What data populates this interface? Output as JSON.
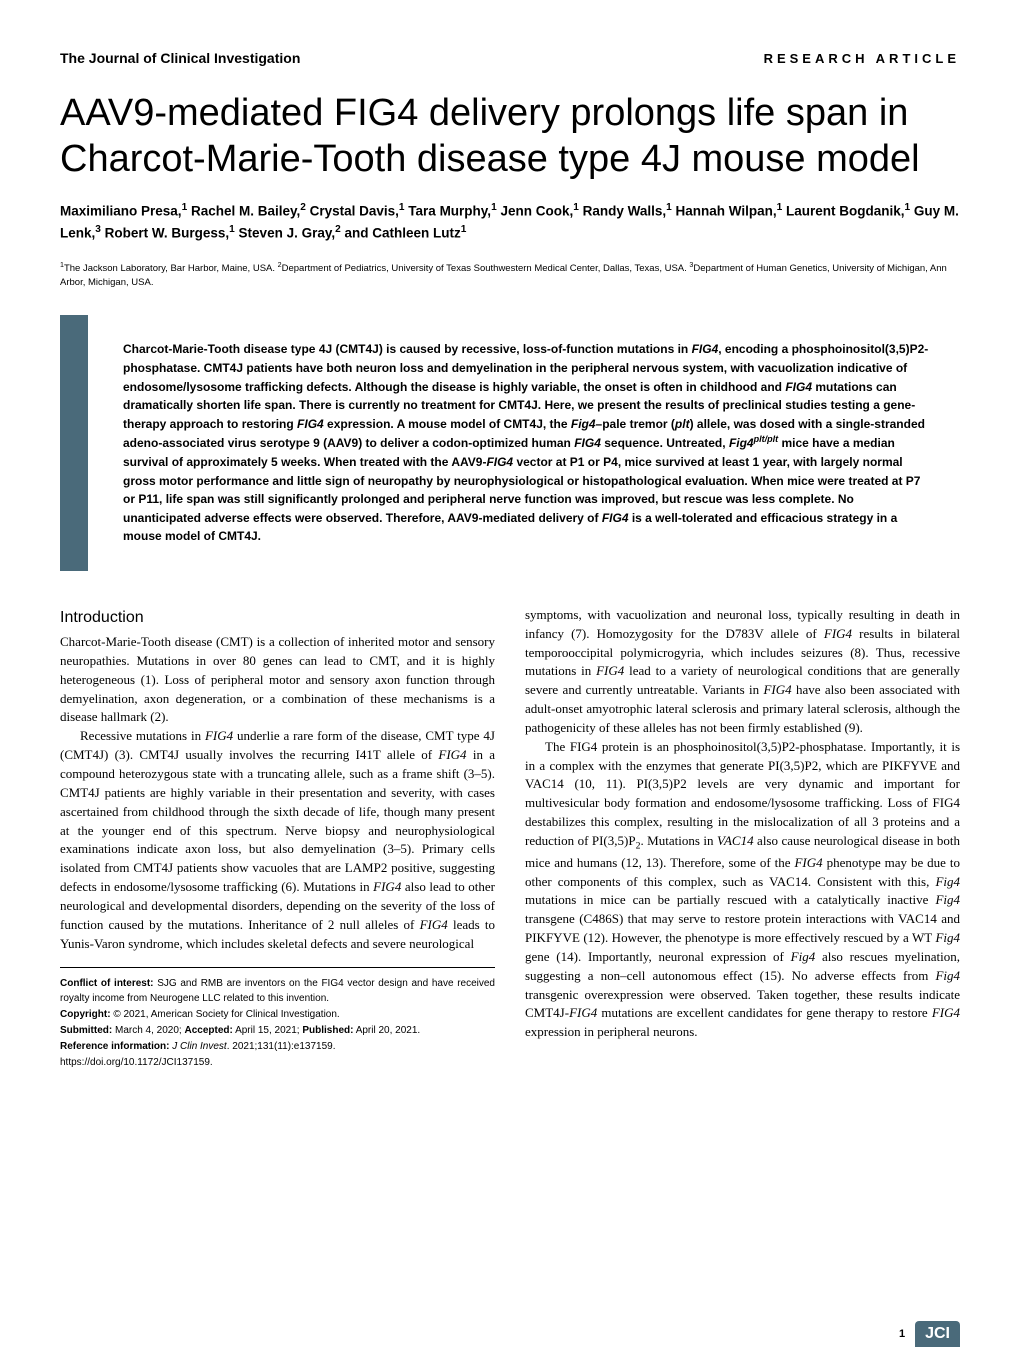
{
  "header": {
    "journal": "The Journal of Clinical Investigation",
    "article_type": "RESEARCH ARTICLE"
  },
  "title": "AAV9-mediated FIG4 delivery prolongs life span in Charcot-Marie-Tooth disease type 4J mouse model",
  "authors_html": "Maximiliano Presa,<span class='sup'>1</span> Rachel M. Bailey,<span class='sup'>2</span> Crystal Davis,<span class='sup'>1</span> Tara Murphy,<span class='sup'>1</span> Jenn Cook,<span class='sup'>1</span> Randy Walls,<span class='sup'>1</span> Hannah Wilpan,<span class='sup'>1</span> Laurent Bogdanik,<span class='sup'>1</span> Guy M. Lenk,<span class='sup'>3</span> Robert W. Burgess,<span class='sup'>1</span> Steven J. Gray,<span class='sup'>2</span> and Cathleen Lutz<span class='sup'>1</span>",
  "affiliations_html": "<span class='sup'>1</span>The Jackson Laboratory, Bar Harbor, Maine, USA. <span class='sup'>2</span>Department of Pediatrics, University of Texas Southwestern Medical Center, Dallas, Texas, USA. <span class='sup'>3</span>Department of Human Genetics, University of Michigan, Ann Arbor, Michigan, USA.",
  "abstract_html": "Charcot-Marie-Tooth disease type 4J (CMT4J) is caused by recessive, loss-of-function mutations in <span class='italic'>FIG4</span>, encoding a phosphoinositol(3,5)P2-phosphatase. CMT4J patients have both neuron loss and demyelination in the peripheral nervous system, with vacuolization indicative of endosome/lysosome trafficking defects. Although the disease is highly variable, the onset is often in childhood and <span class='italic'>FIG4</span> mutations can dramatically shorten life span. There is currently no treatment for CMT4J. Here, we present the results of preclinical studies testing a gene-therapy approach to restoring <span class='italic'>FIG4</span> expression. A mouse model of CMT4J, the <span class='italic'>Fig4</span>–pale tremor (<span class='italic'>plt</span>) allele, was dosed with a single-stranded adeno-associated virus serotype 9 (AAV9) to deliver a codon-optimized human <span class='italic'>FIG4</span> sequence. Untreated, <span class='italic'>Fig4<span class='sup'>plt/plt</span></span> mice have a median survival of approximately 5 weeks. When treated with the AAV9-<span class='italic'>FIG4</span> vector at P1 or P4, mice survived at least 1 year, with largely normal gross motor performance and little sign of neuropathy by neurophysiological or histopathological evaluation. When mice were treated at P7 or P11, life span was still significantly prolonged and peripheral nerve function was improved, but rescue was less complete. No unanticipated adverse effects were observed. Therefore, AAV9-mediated delivery of <span class='italic'>FIG4</span> is a well-tolerated and efficacious strategy in a mouse model of CMT4J.",
  "introduction": {
    "heading": "Introduction",
    "col1_p1": "Charcot-Marie-Tooth disease (CMT) is a collection of inherited motor and sensory neuropathies. Mutations in over 80 genes can lead to CMT, and it is highly heterogeneous (1). Loss of peripheral motor and sensory axon function through demyelination, axon degeneration, or a combination of these mechanisms is a disease hallmark (2).",
    "col1_p2_html": "Recessive mutations in <span class='italic'>FIG4</span> underlie a rare form of the disease, CMT type 4J (CMT4J) (3). CMT4J usually involves the recurring I41T allele of <span class='italic'>FIG4</span> in a compound heterozygous state with a truncating allele, such as a frame shift (3–5). CMT4J patients are highly variable in their presentation and severity, with cases ascertained from childhood through the sixth decade of life, though many present at the younger end of this spectrum. Nerve biopsy and neurophysiological examinations indicate axon loss, but also demyelination (3–5). Primary cells isolated from CMT4J patients show vacuoles that are LAMP2 positive, suggesting defects in endosome/lysosome trafficking (6). Mutations in <span class='italic'>FIG4</span> also lead to other neurological and developmental disorders, depending on the severity of the loss of function caused by the mutations. Inheritance of 2 null alleles of <span class='italic'>FIG4</span> leads to Yunis-Varon syndrome, which includes skeletal defects and severe neurological",
    "col2_p1_html": "symptoms, with vacuolization and neuronal loss, typically resulting in death in infancy (7). Homozygosity for the D783V allele of <span class='italic'>FIG4</span> results in bilateral temporooccipital polymicrogyria, which includes seizures (8). Thus, recessive mutations in <span class='italic'>FIG4</span> lead to a variety of neurological conditions that are generally severe and currently untreatable. Variants in <span class='italic'>FIG4</span> have also been associated with adult-onset amyotrophic lateral sclerosis and primary lateral sclerosis, although the pathogenicity of these alleles has not been firmly established (9).",
    "col2_p2_html": "The FIG4 protein is an phosphoinositol(3,5)P2-phosphatase. Importantly, it is in a complex with the enzymes that generate PI(3,5)P2, which are PIKFYVE and VAC14 (10, 11). PI(3,5)P2 levels are very dynamic and important for multivesicular body formation and endosome/lysosome trafficking. Loss of FIG4 destabilizes this complex, resulting in the mislocalization of all 3 proteins and a reduction of PI(3,5)P<span class='sub'>2</span>. Mutations in <span class='italic'>VAC14</span> also cause neurological disease in both mice and humans (12, 13). Therefore, some of the <span class='italic'>FIG4</span> phenotype may be due to other components of this complex, such as VAC14. Consistent with this, <span class='italic'>Fig4</span> mutations in mice can be partially rescued with a catalytically inactive <span class='italic'>Fig4</span> transgene (C486S) that may serve to restore protein interactions with VAC14 and PIKFYVE (12). However, the phenotype is more effectively rescued by a WT <span class='italic'>Fig4</span> gene (14). Importantly, neuronal expression of <span class='italic'>Fig4</span> also rescues myelination, suggesting a non–cell autonomous effect (15). No adverse effects from <span class='italic'>Fig4</span> transgenic overexpression were observed. Taken together, these results indicate CMT4J-<span class='italic'>FIG4</span> mutations are excellent candidates for gene therapy to restore <span class='italic'>FIG4</span> expression in peripheral neurons."
  },
  "footer": {
    "conflict_html": "<b>Conflict of interest:</b> SJG and RMB are inventors on the FIG4 vector design and have received royalty income from Neurogene LLC related to this invention.",
    "copyright_html": "<b>Copyright:</b> © 2021, American Society for Clinical Investigation.",
    "submitted_html": "<b>Submitted:</b> March 4, 2020; <b>Accepted:</b> April 15, 2021; <b>Published:</b> April 20, 2021.",
    "reference_html": "<b>Reference information:</b> <span class='italic'>J Clin Invest</span>. 2021;131(11):e137159.",
    "doi": "https://doi.org/10.1172/JCI137159."
  },
  "page": {
    "number": "1",
    "badge": "JCI"
  },
  "colors": {
    "accent": "#4a6a7a",
    "text": "#000000",
    "background": "#ffffff"
  }
}
